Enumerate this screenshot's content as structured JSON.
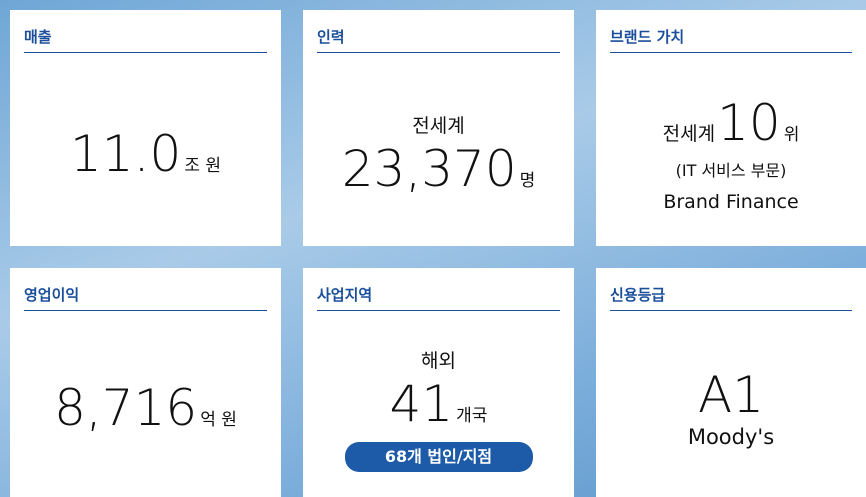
{
  "cards": [
    {
      "title": "매출",
      "value": "11.0",
      "unit": "조 원"
    },
    {
      "title": "인력",
      "prefix": "전세계",
      "value": "23,370",
      "unit": "명"
    },
    {
      "title": "브랜드 가치",
      "prefix": "전세계",
      "value": "10",
      "unit": "위",
      "note": "(IT 서비스 부문)",
      "source": "Brand Finance"
    },
    {
      "title": "영업이익",
      "value": "8,716",
      "unit": "억 원"
    },
    {
      "title": "사업지역",
      "prefix": "해외",
      "value": "41",
      "unit": "개국",
      "badge": "68개 법인/지점"
    },
    {
      "title": "신용등급",
      "value": "A1",
      "source": "Moody's"
    }
  ]
}
